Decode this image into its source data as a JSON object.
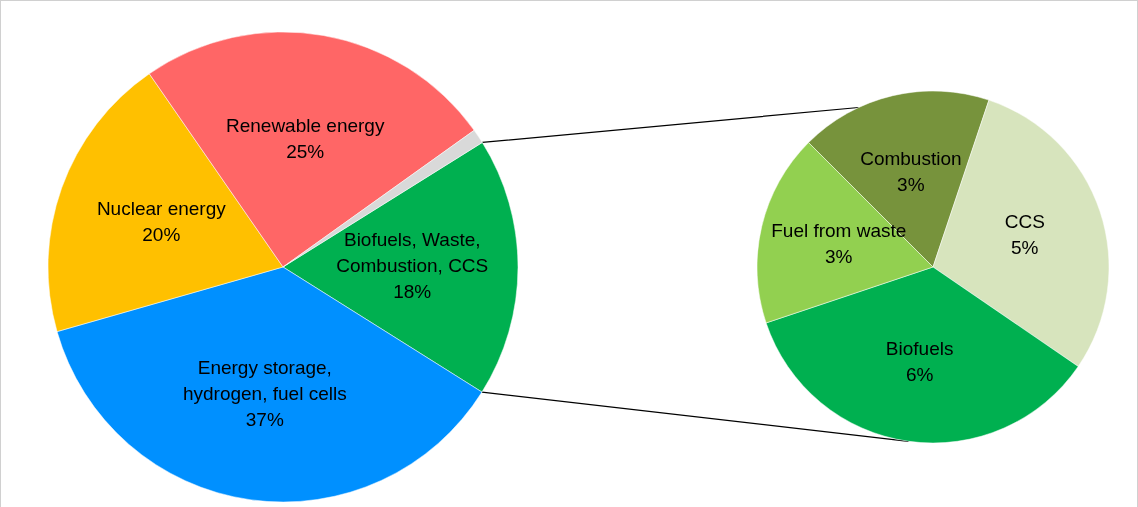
{
  "chart_data": [
    {
      "type": "pie",
      "categories": [
        "Biofuels, Waste, Combustion, CCS",
        "Energy storage, hydrogen, fuel cells",
        "Nuclear energy",
        "Renewable energy",
        null
      ],
      "values": [
        18,
        37,
        20,
        25,
        1
      ],
      "colors": [
        "#00b050",
        "#0090ff",
        "#ffc000",
        "#ff6666",
        "#d9d9d9"
      ],
      "value_labels": [
        "18%",
        "37%",
        "20%",
        "25%",
        null
      ]
    },
    {
      "type": "pie",
      "categories": [
        "Combustion",
        "CCS",
        "Biofuels",
        "Fuel from waste"
      ],
      "values": [
        3,
        5,
        6,
        3
      ],
      "colors": [
        "#77933c",
        "#d7e4bd",
        "#00b050",
        "#92d050"
      ],
      "value_labels": [
        "3%",
        "5%",
        "6%",
        "3%"
      ]
    }
  ]
}
